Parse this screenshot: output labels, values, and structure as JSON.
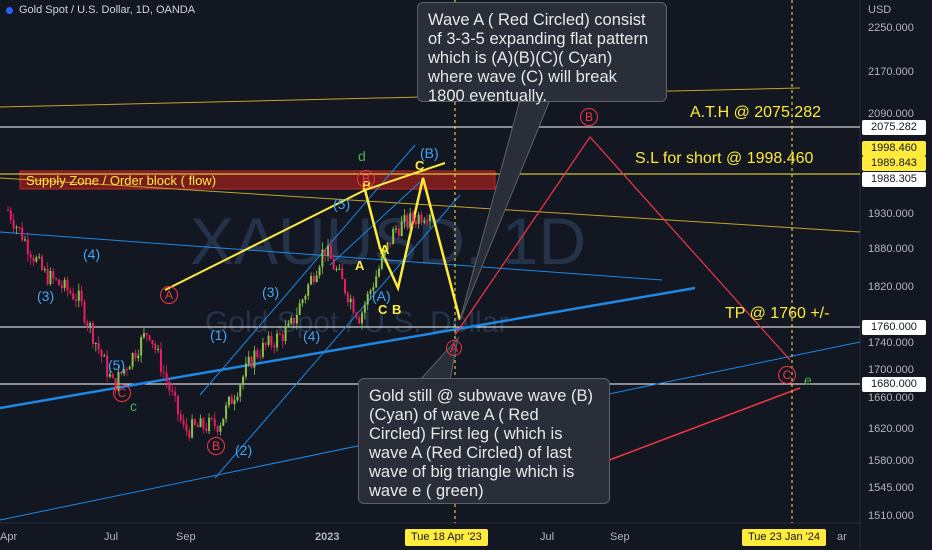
{
  "header": {
    "title": "Gold Spot / U.S. Dollar, 1D, OANDA",
    "currency": "USD"
  },
  "watermark": {
    "symbol": "XAUUSD, 1D",
    "name": "Gold Spot / U.S. Dollar"
  },
  "colors": {
    "background": "#131722",
    "yellow": "#ffeb3b",
    "red": "#f23645",
    "blue": "#2196f3",
    "cyan": "#42a5f5",
    "green": "#4caf50",
    "candle_up": "#8bc34a",
    "candle_down": "#e91e63"
  },
  "price_axis": [
    "2250.000",
    "2170.000",
    "2090.000",
    "1930.000",
    "1880.000",
    "1820.000",
    "1740.000",
    "1700.000",
    "1660.000",
    "1620.000",
    "1580.000",
    "1545.000",
    "1510.000"
  ],
  "price_tags": [
    {
      "id": "ath",
      "text": "2075.282",
      "value": 2075.282,
      "bg": "#ffffff",
      "fg": "#131722"
    },
    {
      "id": "sl",
      "text": "1998.460",
      "value": 1998.46,
      "bg": "#ffeb3b",
      "fg": "#131722"
    },
    {
      "id": "p3",
      "text": "1989.843",
      "value": 1989.843,
      "bg": "#ffeb3b",
      "fg": "#131722"
    },
    {
      "id": "cur",
      "text": "1988.305",
      "value": 1988.305,
      "bg": "#ffffff",
      "fg": "#131722"
    },
    {
      "id": "tp",
      "text": "1760.000",
      "value": 1760,
      "bg": "#ffffff",
      "fg": "#131722"
    },
    {
      "id": "low",
      "text": "1680.000",
      "value": 1680,
      "bg": "#ffffff",
      "fg": "#131722"
    }
  ],
  "time_axis": [
    "Apr",
    "Jul",
    "Sep",
    "2023",
    "Jul",
    "Sep",
    "ar"
  ],
  "time_tags": [
    "Tue 18 Apr '23",
    "Tue 23 Jan '24"
  ],
  "annotations": {
    "ath": "A.T.H @ 2075.282",
    "sl": "S.L for short @ 1998.460",
    "tp": "TP @ 1760 +/-",
    "supply": "Supply Zone / Order block ( flow)"
  },
  "callouts": {
    "top": "Wave A ( Red Circled) consist of 3-3-5 expanding flat pattern which is (A)(B)(C)( Cyan) where wave (C) will break 1800 eventually.",
    "bottom": "Gold still @ subwave wave (B) (Cyan) of wave A ( Red Circled) First leg ( which is wave A (Red Circled) of last wave of big triangle which is wave e ( green)"
  },
  "wave_labels": {
    "blue": [
      "(4)",
      "(3)",
      "(5)",
      "(1)",
      "(3)",
      "(4)",
      "(5)",
      "(2)",
      "(A)",
      "(B)"
    ],
    "yellow": [
      "B",
      "A",
      "A",
      "C",
      "B",
      "C"
    ],
    "red": [
      "A",
      "C",
      "B",
      "B",
      "A",
      "C"
    ],
    "green": [
      "d",
      "c",
      "e"
    ]
  },
  "chart_data": {
    "type": "line",
    "title": "Gold Spot / U.S. Dollar, 1D, OANDA",
    "xlabel": "",
    "ylabel": "USD",
    "x_ticks": [
      "Apr",
      "Jul",
      "Sep",
      "2023",
      "Jul",
      "Sep"
    ],
    "ylim": [
      1500,
      2280
    ],
    "series": [
      {
        "name": "",
        "x": [
          "Apr 2022",
          "May 2022",
          "Jun 2022",
          "Jul 2022",
          "Aug 2022",
          "Sep 2022",
          "Oct 2022",
          "Nov 2022",
          "Dec 2022",
          "Jan 2023",
          "Feb 2023",
          "Mar 2023",
          "Apr 2023"
        ],
        "values": [
          1990,
          1890,
          1850,
          1710,
          1800,
          1640,
          1650,
          1760,
          1800,
          1930,
          1820,
          1960,
          1990
        ]
      }
    ],
    "levels": [
      2075.282,
      1998.46,
      1989.843,
      1988.305,
      1760,
      1680
    ]
  }
}
